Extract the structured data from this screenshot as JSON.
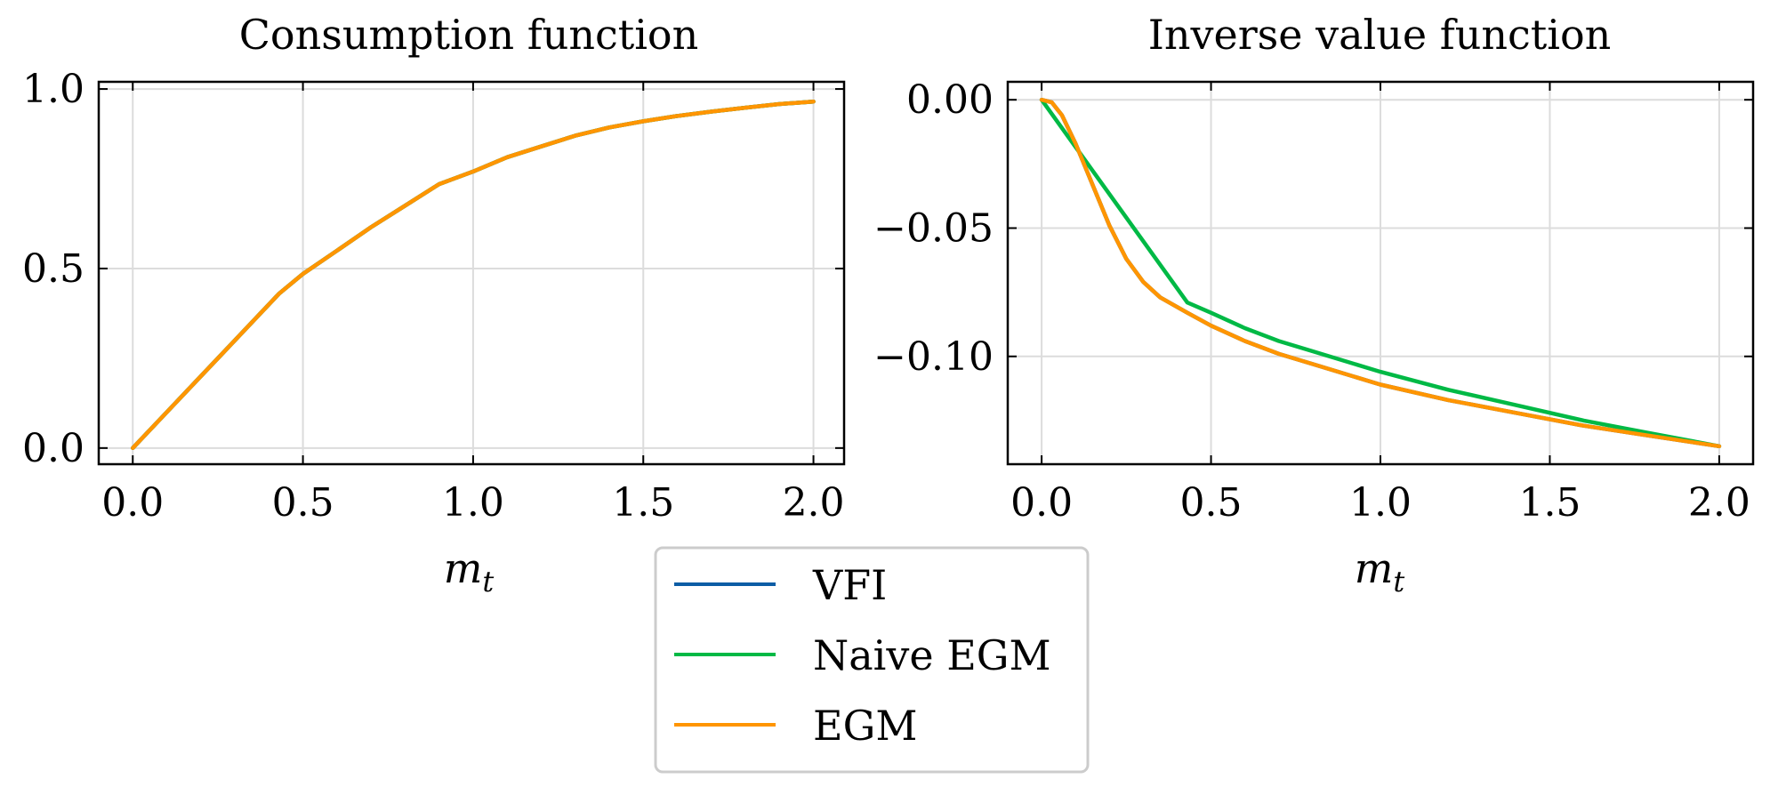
{
  "legend": [
    {
      "label": "VFI",
      "color": "#0C5DA5"
    },
    {
      "label": "Naive EGM",
      "color": "#00B945"
    },
    {
      "label": "EGM",
      "color": "#FF9500"
    }
  ],
  "chart_data": [
    {
      "type": "line",
      "title": "Consumption function",
      "xlabel": "m_t",
      "ylabel": "",
      "xlim": [
        -0.1,
        2.09
      ],
      "ylim": [
        -0.045,
        1.02
      ],
      "xticks": [
        0.0,
        0.5,
        1.0,
        1.5,
        2.0
      ],
      "xtick_labels": [
        "0.0",
        "0.5",
        "1.0",
        "1.5",
        "2.0"
      ],
      "yticks": [
        0.0,
        0.5,
        1.0
      ],
      "ytick_labels": [
        "0.0",
        "0.5",
        "1.0"
      ],
      "grid": true,
      "series": [
        {
          "name": "VFI",
          "color": "#0C5DA5",
          "x": [
            0,
            0.1,
            0.2,
            0.3,
            0.43,
            0.5,
            0.6,
            0.7,
            0.8,
            0.9,
            1.0,
            1.1,
            1.2,
            1.3,
            1.4,
            1.5,
            1.6,
            1.7,
            1.8,
            1.9,
            2.0
          ],
          "y": [
            0,
            0.1,
            0.2,
            0.3,
            0.43,
            0.485,
            0.55,
            0.615,
            0.675,
            0.735,
            0.77,
            0.81,
            0.84,
            0.87,
            0.893,
            0.91,
            0.925,
            0.937,
            0.948,
            0.958,
            0.965
          ]
        },
        {
          "name": "Naive EGM",
          "color": "#00B945",
          "x": [
            0,
            0.1,
            0.2,
            0.3,
            0.43,
            0.5,
            0.6,
            0.7,
            0.8,
            0.9,
            1.0,
            1.1,
            1.2,
            1.3,
            1.4,
            1.5,
            1.6,
            1.7,
            1.8,
            1.9,
            2.0
          ],
          "y": [
            0,
            0.1,
            0.2,
            0.3,
            0.43,
            0.485,
            0.55,
            0.615,
            0.675,
            0.735,
            0.77,
            0.81,
            0.84,
            0.87,
            0.893,
            0.91,
            0.925,
            0.937,
            0.948,
            0.958,
            0.965
          ]
        },
        {
          "name": "EGM",
          "color": "#FF9500",
          "x": [
            0,
            0.1,
            0.2,
            0.3,
            0.43,
            0.5,
            0.6,
            0.7,
            0.8,
            0.9,
            1.0,
            1.1,
            1.2,
            1.3,
            1.4,
            1.5,
            1.6,
            1.7,
            1.8,
            1.9,
            2.0
          ],
          "y": [
            0,
            0.1,
            0.2,
            0.3,
            0.43,
            0.485,
            0.55,
            0.615,
            0.675,
            0.735,
            0.77,
            0.81,
            0.84,
            0.87,
            0.893,
            0.91,
            0.925,
            0.937,
            0.948,
            0.958,
            0.965
          ]
        }
      ]
    },
    {
      "type": "line",
      "title": "Inverse value function",
      "xlabel": "m_t",
      "ylabel": "",
      "xlim": [
        -0.1,
        2.1
      ],
      "ylim": [
        -0.142,
        0.007
      ],
      "xticks": [
        0.0,
        0.5,
        1.0,
        1.5,
        2.0
      ],
      "xtick_labels": [
        "0.0",
        "0.5",
        "1.0",
        "1.5",
        "2.0"
      ],
      "yticks": [
        0.0,
        -0.05,
        -0.1
      ],
      "ytick_labels": [
        "0.00",
        "−0.05",
        "−0.10"
      ],
      "grid": true,
      "series": [
        {
          "name": "VFI",
          "color": "#0C5DA5",
          "x": [
            0,
            0.03,
            0.06,
            0.1,
            0.15,
            0.2,
            0.25,
            0.3,
            0.35,
            0.43,
            0.5,
            0.6,
            0.7,
            0.8,
            1.0,
            1.2,
            1.4,
            1.6,
            1.8,
            2.0
          ],
          "y": [
            0,
            -0.001,
            -0.006,
            -0.017,
            -0.033,
            -0.049,
            -0.062,
            -0.071,
            -0.077,
            -0.083,
            -0.088,
            -0.094,
            -0.099,
            -0.103,
            -0.111,
            -0.117,
            -0.122,
            -0.127,
            -0.131,
            -0.135
          ]
        },
        {
          "name": "Naive EGM",
          "color": "#00B945",
          "x": [
            0,
            0.43,
            0.5,
            0.6,
            0.7,
            0.8,
            1.0,
            1.2,
            1.4,
            1.6,
            1.8,
            2.0
          ],
          "y": [
            0,
            -0.079,
            -0.083,
            -0.089,
            -0.094,
            -0.098,
            -0.106,
            -0.113,
            -0.119,
            -0.125,
            -0.13,
            -0.135
          ]
        },
        {
          "name": "EGM",
          "color": "#FF9500",
          "x": [
            0,
            0.03,
            0.06,
            0.1,
            0.15,
            0.2,
            0.25,
            0.3,
            0.35,
            0.43,
            0.5,
            0.6,
            0.7,
            0.8,
            1.0,
            1.2,
            1.4,
            1.6,
            1.8,
            2.0
          ],
          "y": [
            0,
            -0.001,
            -0.006,
            -0.017,
            -0.033,
            -0.049,
            -0.062,
            -0.071,
            -0.077,
            -0.083,
            -0.088,
            -0.094,
            -0.099,
            -0.103,
            -0.111,
            -0.117,
            -0.122,
            -0.127,
            -0.131,
            -0.135
          ]
        }
      ]
    }
  ]
}
